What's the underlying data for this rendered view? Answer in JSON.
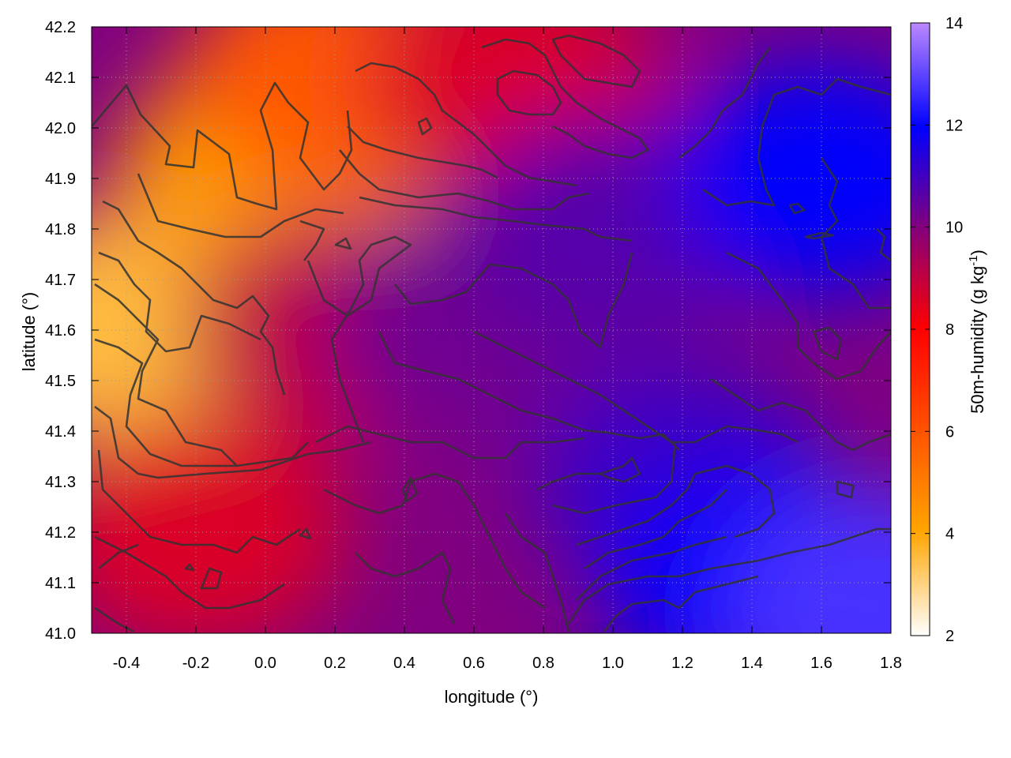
{
  "chart_data": {
    "type": "heatmap",
    "title": "",
    "xlabel": "longitude (°)",
    "ylabel": "latitude (°)",
    "xlim": [
      -0.5,
      1.8
    ],
    "ylim": [
      41.0,
      42.2
    ],
    "x_ticks": [
      "-0.4",
      "-0.2",
      "0.0",
      "0.2",
      "0.4",
      "0.6",
      "0.8",
      "1.0",
      "1.2",
      "1.4",
      "1.6",
      "1.8"
    ],
    "y_ticks": [
      "41.0",
      "41.1",
      "41.2",
      "41.3",
      "41.4",
      "41.5",
      "41.6",
      "41.7",
      "41.8",
      "41.9",
      "42.0",
      "42.1",
      "42.2"
    ],
    "grid": true,
    "colorbar": {
      "label": "50m-humidity (g kg",
      "label_sup": "-1",
      "label_end": ")",
      "range": [
        2,
        14
      ],
      "ticks": [
        "2",
        "4",
        "6",
        "8",
        "10",
        "12",
        "14"
      ],
      "colors": [
        "#ffffff",
        "#ffa500",
        "#ff0000",
        "#800080",
        "#0000ff",
        "#bb88ff"
      ]
    },
    "field_samples": [
      {
        "lon": -0.4,
        "lat": 41.6,
        "value": 3.8
      },
      {
        "lon": 0.0,
        "lat": 41.9,
        "value": 4.5
      },
      {
        "lon": 0.2,
        "lat": 42.1,
        "value": 5.5
      },
      {
        "lon": 0.7,
        "lat": 42.1,
        "value": 7.5
      },
      {
        "lon": 0.2,
        "lat": 41.6,
        "value": 8.0
      },
      {
        "lon": 0.6,
        "lat": 41.6,
        "value": 9.5
      },
      {
        "lon": 1.0,
        "lat": 41.8,
        "value": 10.0
      },
      {
        "lon": 1.2,
        "lat": 41.3,
        "value": 10.5
      },
      {
        "lon": 1.6,
        "lat": 41.9,
        "value": 11.5
      },
      {
        "lon": 1.4,
        "lat": 41.1,
        "value": 11.5
      },
      {
        "lon": 1.75,
        "lat": 41.05,
        "value": 12.5
      },
      {
        "lon": -0.2,
        "lat": 41.2,
        "value": 7.5
      }
    ]
  }
}
